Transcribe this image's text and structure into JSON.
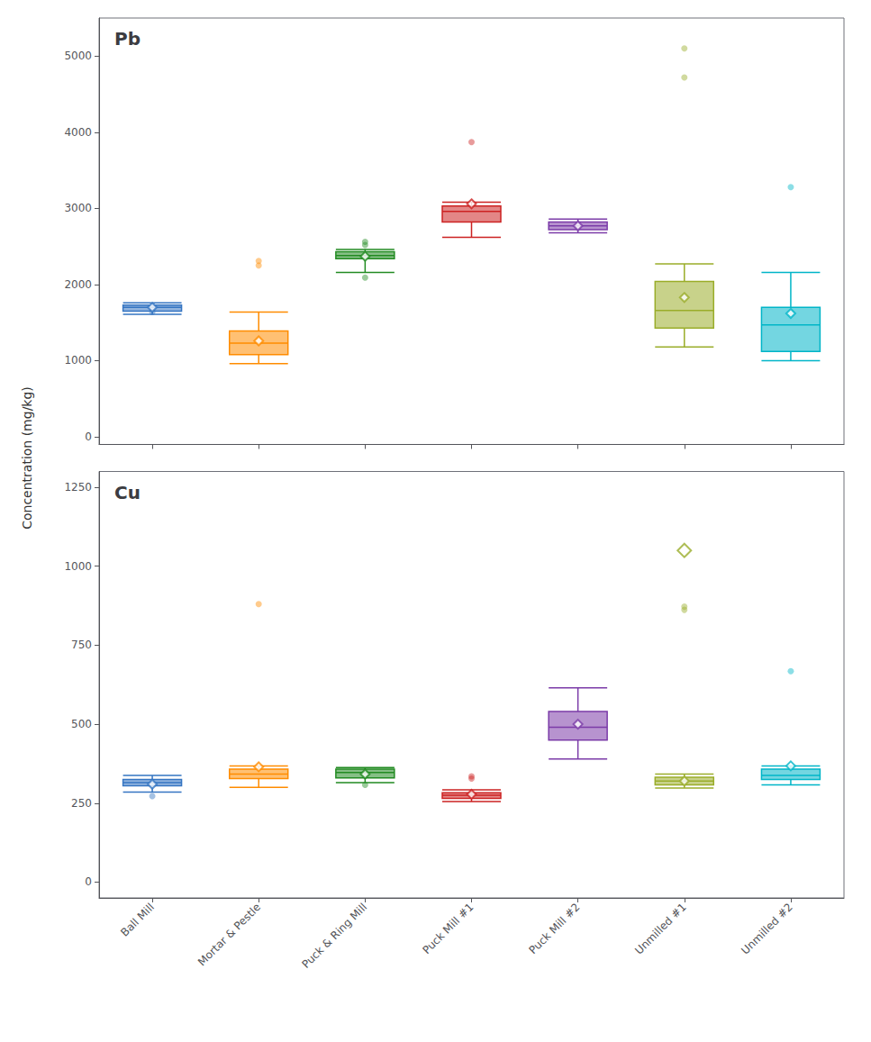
{
  "chart_data": [
    {
      "type": "boxplot",
      "title": "Pb",
      "ylabel": "Concentration (mg/kg)",
      "categories": [
        "Ball Mill",
        "Mortar & Pestle",
        "Puck & Ring Mill",
        "Puck Mill #1",
        "Puck Mill #2",
        "Unmilled #1",
        "Unmilled #2"
      ],
      "colors": [
        "#3575C2",
        "#FF8C00",
        "#228B22",
        "#CC2222",
        "#7B3BA8",
        "#9AAD2A",
        "#00B5C8"
      ],
      "ylim": [
        -100,
        5500
      ],
      "yticks": [
        0,
        1000,
        2000,
        3000,
        4000,
        5000
      ],
      "grid": false,
      "tick_labels": "y",
      "boxes": [
        {
          "q1": 1650,
          "median": 1700,
          "q3": 1730,
          "whislo": 1610,
          "whishi": 1760,
          "mean": 1700,
          "fliers": [
            1640
          ]
        },
        {
          "q1": 1080,
          "median": 1230,
          "q3": 1390,
          "whislo": 960,
          "whishi": 1640,
          "mean": 1260,
          "fliers": [
            2250,
            2310
          ]
        },
        {
          "q1": 2340,
          "median": 2380,
          "q3": 2430,
          "whislo": 2160,
          "whishi": 2460,
          "mean": 2370,
          "fliers": [
            2520,
            2560,
            2090
          ]
        },
        {
          "q1": 2820,
          "median": 2960,
          "q3": 3030,
          "whislo": 2620,
          "whishi": 3080,
          "mean": 3060,
          "fliers": [
            3870
          ]
        },
        {
          "q1": 2720,
          "median": 2770,
          "q3": 2820,
          "whislo": 2680,
          "whishi": 2860,
          "mean": 2770,
          "fliers": []
        },
        {
          "q1": 1430,
          "median": 1660,
          "q3": 2040,
          "whislo": 1180,
          "whishi": 2270,
          "mean": 1830,
          "fliers": [
            4720,
            5100
          ]
        },
        {
          "q1": 1120,
          "median": 1470,
          "q3": 1700,
          "whislo": 1000,
          "whishi": 2160,
          "mean": 1620,
          "fliers": [
            3280
          ]
        }
      ]
    },
    {
      "type": "boxplot",
      "title": "Cu",
      "categories": [
        "Ball Mill",
        "Mortar & Pestle",
        "Puck & Ring Mill",
        "Puck Mill #1",
        "Puck Mill #2",
        "Unmilled #1",
        "Unmilled #2"
      ],
      "colors": [
        "#3575C2",
        "#FF8C00",
        "#228B22",
        "#CC2222",
        "#7B3BA8",
        "#9AAD2A",
        "#00B5C8"
      ],
      "ylim": [
        -50,
        1300
      ],
      "yticks": [
        0,
        250,
        500,
        750,
        1000,
        1250
      ],
      "grid": false,
      "boxes": [
        {
          "q1": 305,
          "median": 315,
          "q3": 325,
          "whislo": 285,
          "whishi": 338,
          "mean": 310,
          "fliers": [
            272
          ]
        },
        {
          "q1": 328,
          "median": 342,
          "q3": 358,
          "whislo": 300,
          "whishi": 368,
          "mean": 365,
          "fliers": [
            880
          ]
        },
        {
          "q1": 330,
          "median": 347,
          "q3": 358,
          "whislo": 315,
          "whishi": 363,
          "mean": 342,
          "fliers": [
            308
          ]
        },
        {
          "q1": 265,
          "median": 275,
          "q3": 283,
          "whislo": 255,
          "whishi": 292,
          "mean": 278,
          "fliers": [
            328,
            335
          ]
        },
        {
          "q1": 450,
          "median": 490,
          "q3": 540,
          "whislo": 390,
          "whishi": 615,
          "mean": 500,
          "fliers": []
        },
        {
          "q1": 308,
          "median": 320,
          "q3": 332,
          "whislo": 298,
          "whishi": 342,
          "mean": 320,
          "fliers": [
            862,
            872
          ]
        },
        {
          "q1": 325,
          "median": 338,
          "q3": 358,
          "whislo": 308,
          "whishi": 368,
          "mean": 368,
          "fliers": [
            668
          ]
        }
      ],
      "highlighted_means": [
        {
          "category": "Unmilled #1",
          "value": 1050
        }
      ]
    }
  ]
}
